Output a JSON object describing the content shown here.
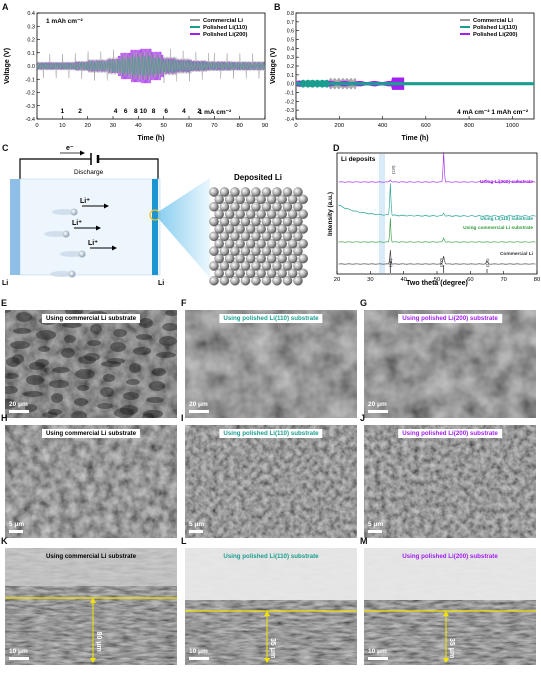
{
  "panels": {
    "A": {
      "label": "A",
      "annotation": "1 mAh cm⁻²",
      "footer": "1 mA cm⁻²",
      "chart_data": {
        "type": "line",
        "xlabel": "Time (h)",
        "ylabel": "Voltage (V)",
        "xlim": [
          0,
          90
        ],
        "ylim": [
          -0.4,
          0.4
        ],
        "xticks": [
          0,
          10,
          20,
          30,
          40,
          50,
          60,
          70,
          80,
          90
        ],
        "yticks": [
          -0.4,
          -0.3,
          -0.2,
          -0.1,
          0.0,
          0.1,
          0.2,
          0.3,
          0.4
        ],
        "legend": [
          "Commercial Li",
          "Polished Li(110)",
          "Polished Li(200)"
        ],
        "legend_position": "top-right",
        "rate_labels": [
          {
            "t": 10,
            "text": "1"
          },
          {
            "t": 17,
            "text": "2"
          },
          {
            "t": 31,
            "text": "4"
          },
          {
            "t": 35,
            "text": "6"
          },
          {
            "t": 39,
            "text": "8"
          },
          {
            "t": 42,
            "text": "10"
          },
          {
            "t": 46,
            "text": "8"
          },
          {
            "t": 51,
            "text": "6"
          },
          {
            "t": 58,
            "text": "4"
          },
          {
            "t": 64,
            "text": "2"
          }
        ],
        "series": [
          {
            "name": "Commercial Li",
            "color": "#9a9a9a"
          },
          {
            "name": "Polished Li(110)",
            "color": "#1a9e8f"
          },
          {
            "name": "Polished Li(200)",
            "color": "#a020f0"
          }
        ]
      }
    },
    "B": {
      "label": "B",
      "footer": "4 mA cm⁻² 1 mAh cm⁻²",
      "chart_data": {
        "type": "line",
        "xlabel": "Time (h)",
        "ylabel": "Voltage (V)",
        "xlim": [
          0,
          1100
        ],
        "ylim": [
          -0.4,
          0.8
        ],
        "xticks": [
          0,
          200,
          400,
          600,
          800,
          1000
        ],
        "yticks": [
          -0.4,
          -0.3,
          -0.2,
          -0.1,
          0.0,
          0.1,
          0.2,
          0.3,
          0.4,
          0.5,
          0.6,
          0.7,
          0.8
        ],
        "legend": [
          "Commercial Li",
          "Polished Li(110)",
          "Polished Li(200)"
        ],
        "legend_position": "top-right",
        "series": [
          {
            "name": "Commercial Li",
            "color": "#9a9a9a",
            "end_h": 280
          },
          {
            "name": "Polished Li(110)",
            "color": "#1a9e8f",
            "end_h": 1100
          },
          {
            "name": "Polished Li(200)",
            "color": "#a020f0",
            "end_h": 500
          }
        ]
      }
    },
    "C": {
      "label": "C",
      "electron": "e⁻",
      "discharge": "Discharge",
      "li_ion": "Li⁺",
      "left_electrode": "Li",
      "right_electrode": "Li",
      "deposited": "Deposited Li"
    },
    "D": {
      "label": "D",
      "chart_data": {
        "type": "line",
        "title": "Li deposits",
        "xlabel": "Two theta (degree)",
        "ylabel": "Intensity (a.u.)",
        "xlim": [
          20,
          80
        ],
        "xticks": [
          20,
          30,
          40,
          50,
          60,
          70,
          80
        ],
        "series": [
          {
            "name": "Using Li(200) substrate",
            "color": "#a020f0"
          },
          {
            "name": "Using Li(110) substrate",
            "color": "#1a9e8f"
          },
          {
            "name": "Using commercial Li substrate",
            "color": "#2e9c3a"
          },
          {
            "name": "Commercial Li",
            "color": "#333333"
          }
        ],
        "peak_labels": [
          "(110)",
          "(110)",
          "(200)",
          "(211)"
        ]
      }
    },
    "sem": [
      {
        "label": "E",
        "caption": "Using commercial Li substrate",
        "cap_color": "#000000",
        "scale": "20 μm"
      },
      {
        "label": "F",
        "caption": "Using polished Li(110) substrate",
        "cap_color": "#1a9e8f",
        "scale": "20 μm"
      },
      {
        "label": "G",
        "caption": "Using polished Li(200) substrate",
        "cap_color": "#a020f0",
        "scale": "20 μm"
      },
      {
        "label": "H",
        "caption": "Using commercial Li substrate",
        "cap_color": "#000000",
        "scale": "5 μm"
      },
      {
        "label": "I",
        "caption": "Using polished Li(110) substrate",
        "cap_color": "#1a9e8f",
        "scale": "5 μm"
      },
      {
        "label": "J",
        "caption": "Using polished Li(200) substrate",
        "cap_color": "#a020f0",
        "scale": "5 μm"
      },
      {
        "label": "K",
        "caption": "Using commercial Li substrate",
        "cap_color": "#000000",
        "scale": "10 μm",
        "thickness": "80 μm"
      },
      {
        "label": "L",
        "caption": "Using polished Li(110) substrate",
        "cap_color": "#1a9e8f",
        "scale": "10 μm",
        "thickness": "35 μm"
      },
      {
        "label": "M",
        "caption": "Using polished Li(200) substrate",
        "cap_color": "#a020f0",
        "scale": "10 μm",
        "thickness": "35 μm"
      }
    ]
  }
}
